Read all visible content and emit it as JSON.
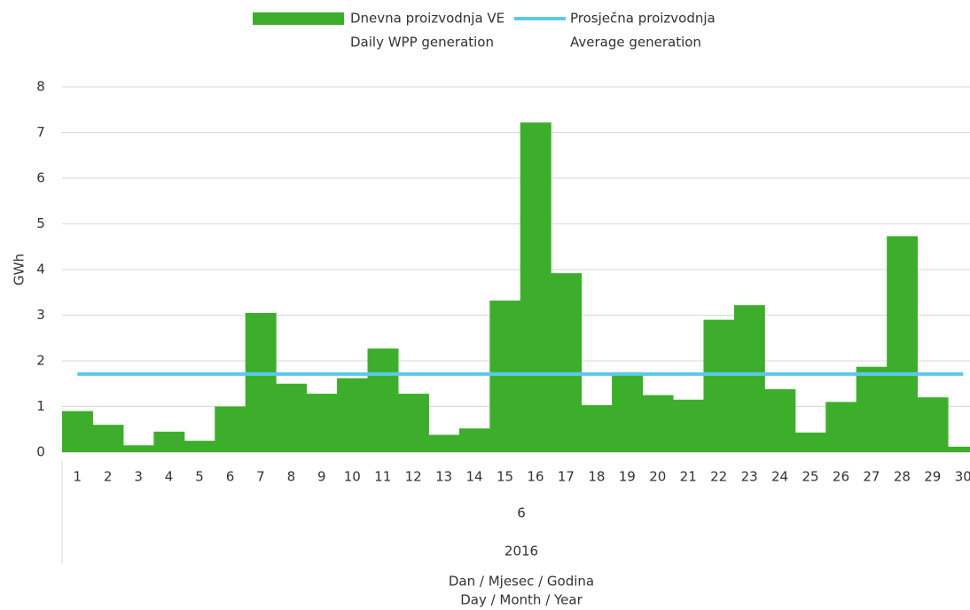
{
  "chart_data": {
    "type": "bar",
    "categories": [
      "1",
      "2",
      "3",
      "4",
      "5",
      "6",
      "7",
      "8",
      "9",
      "10",
      "11",
      "12",
      "13",
      "14",
      "15",
      "16",
      "17",
      "18",
      "19",
      "20",
      "21",
      "22",
      "23",
      "24",
      "25",
      "26",
      "27",
      "28",
      "29",
      "30"
    ],
    "month_label": "6",
    "year_label": "2016",
    "x_label": [
      "Dan / Mjesec / Godina",
      "Day / Month / Year"
    ],
    "y_label": "GWh",
    "series": [
      {
        "name": "Dnevna proizvodnja VE",
        "name_en": "Daily WPP generation",
        "type": "bar",
        "color": "#3dae2b",
        "values": [
          0.9,
          0.6,
          0.15,
          0.45,
          0.25,
          1.0,
          3.05,
          1.5,
          1.28,
          1.62,
          2.27,
          1.28,
          0.38,
          0.52,
          3.32,
          7.22,
          3.92,
          1.03,
          1.75,
          1.25,
          1.15,
          2.9,
          3.22,
          1.38,
          0.43,
          1.1,
          1.87,
          4.73,
          1.2,
          0.12
        ]
      },
      {
        "name": "Prosječna proizvodnja",
        "name_en": "Average generation",
        "type": "line",
        "color": "#5bc8ee",
        "values": [
          1.71,
          1.71,
          1.71,
          1.71,
          1.71,
          1.71,
          1.71,
          1.71,
          1.71,
          1.71,
          1.71,
          1.71,
          1.71,
          1.71,
          1.71,
          1.71,
          1.71,
          1.71,
          1.71,
          1.71,
          1.71,
          1.71,
          1.71,
          1.71,
          1.71,
          1.71,
          1.71,
          1.71,
          1.71,
          1.71
        ]
      }
    ],
    "ylim": [
      0,
      8
    ],
    "yticks": [
      0,
      1,
      2,
      3,
      4,
      5,
      6,
      7,
      8
    ],
    "grid": true
  }
}
